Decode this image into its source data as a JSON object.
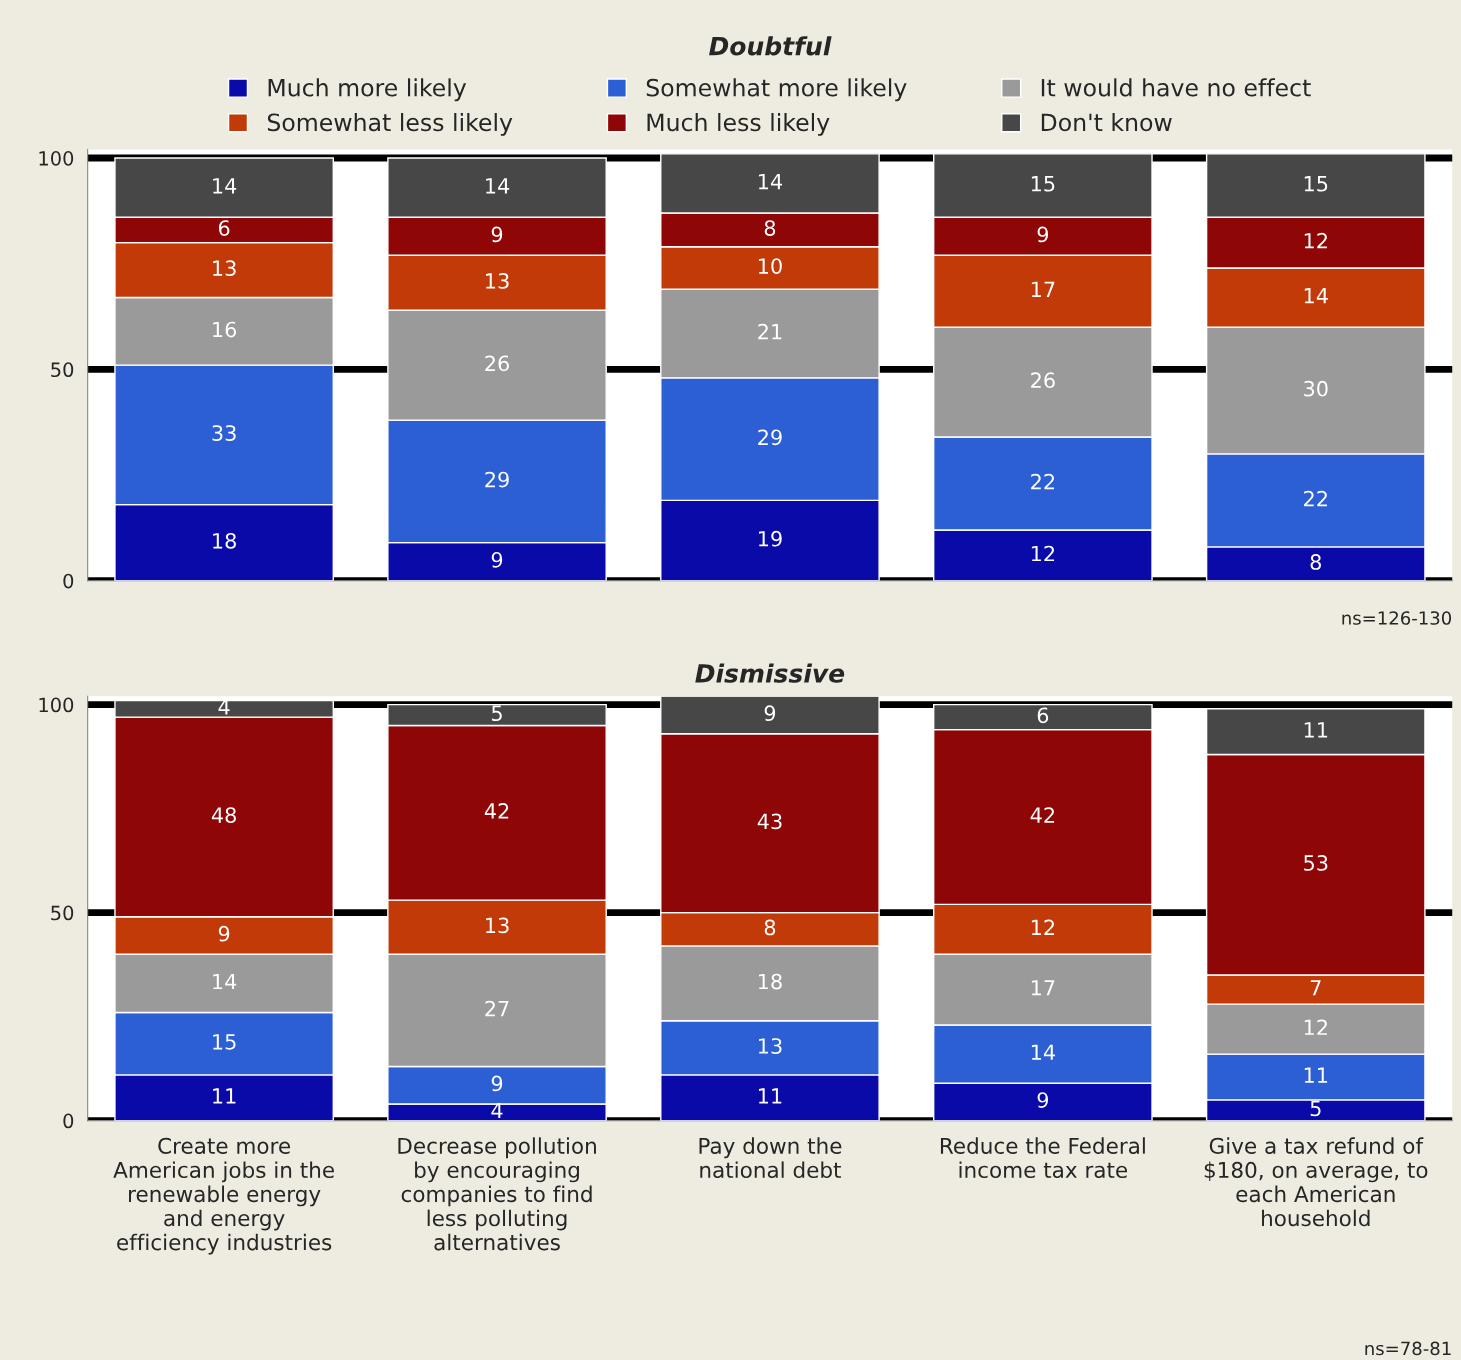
{
  "chart_data": [
    {
      "type": "bar",
      "title": "Doubtful",
      "stacked": true,
      "data_labels": true,
      "legend": "top",
      "grid": "y",
      "tick_labels": "y",
      "categories": [
        null,
        null,
        null,
        null,
        null
      ],
      "ylim": [
        0,
        102
      ],
      "yticks": [
        0,
        50,
        100
      ],
      "series": [
        {
          "name": "Much more likely",
          "color": "#0a0aa8",
          "values": [
            18,
            9,
            19,
            12,
            8
          ]
        },
        {
          "name": "Somewhat more likely",
          "color": "#2c5fd4",
          "values": [
            33,
            29,
            29,
            22,
            22
          ]
        },
        {
          "name": "It would have no effect",
          "color": "#9a9a9a",
          "values": [
            16,
            26,
            21,
            26,
            30
          ]
        },
        {
          "name": "Somewhat less likely",
          "color": "#c23a08",
          "values": [
            13,
            13,
            10,
            17,
            14
          ]
        },
        {
          "name": "Much less likely",
          "color": "#8e0606",
          "values": [
            6,
            9,
            8,
            9,
            12
          ]
        },
        {
          "name": "Don't know",
          "color": "#474747",
          "values": [
            14,
            14,
            14,
            15,
            15
          ]
        }
      ],
      "annotations": [
        "ns=126-130"
      ]
    },
    {
      "type": "bar",
      "title": "Dismissive",
      "stacked": true,
      "data_labels": true,
      "grid": "y",
      "categories": [
        "Create more\nAmerican jobs in the\nrenewable energy\nand energy\nefficiency industries",
        "Decrease pollution\nby encouraging\ncompanies to find\nless polluting\nalternatives",
        "Pay down the\nnational debt",
        "Reduce the Federal\nincome tax rate",
        "Give a tax refund of\n$180, on average, to\neach American\nhousehold"
      ],
      "ylim": [
        0,
        102
      ],
      "yticks": [
        0,
        50,
        100
      ],
      "series": [
        {
          "color": "#0a0aa8",
          "values": [
            11,
            4,
            11,
            9,
            5
          ]
        },
        {
          "color": "#2c5fd4",
          "values": [
            15,
            9,
            13,
            14,
            11
          ]
        },
        {
          "color": "#9a9a9a",
          "values": [
            14,
            27,
            18,
            17,
            12
          ]
        },
        {
          "color": "#c23a08",
          "values": [
            9,
            13,
            8,
            12,
            7
          ]
        },
        {
          "color": "#8e0606",
          "values": [
            48,
            42,
            43,
            42,
            53
          ]
        },
        {
          "color": "#474747",
          "values": [
            4,
            5,
            9,
            6,
            11
          ]
        }
      ],
      "annotations": [
        "ns=78-81"
      ]
    }
  ]
}
